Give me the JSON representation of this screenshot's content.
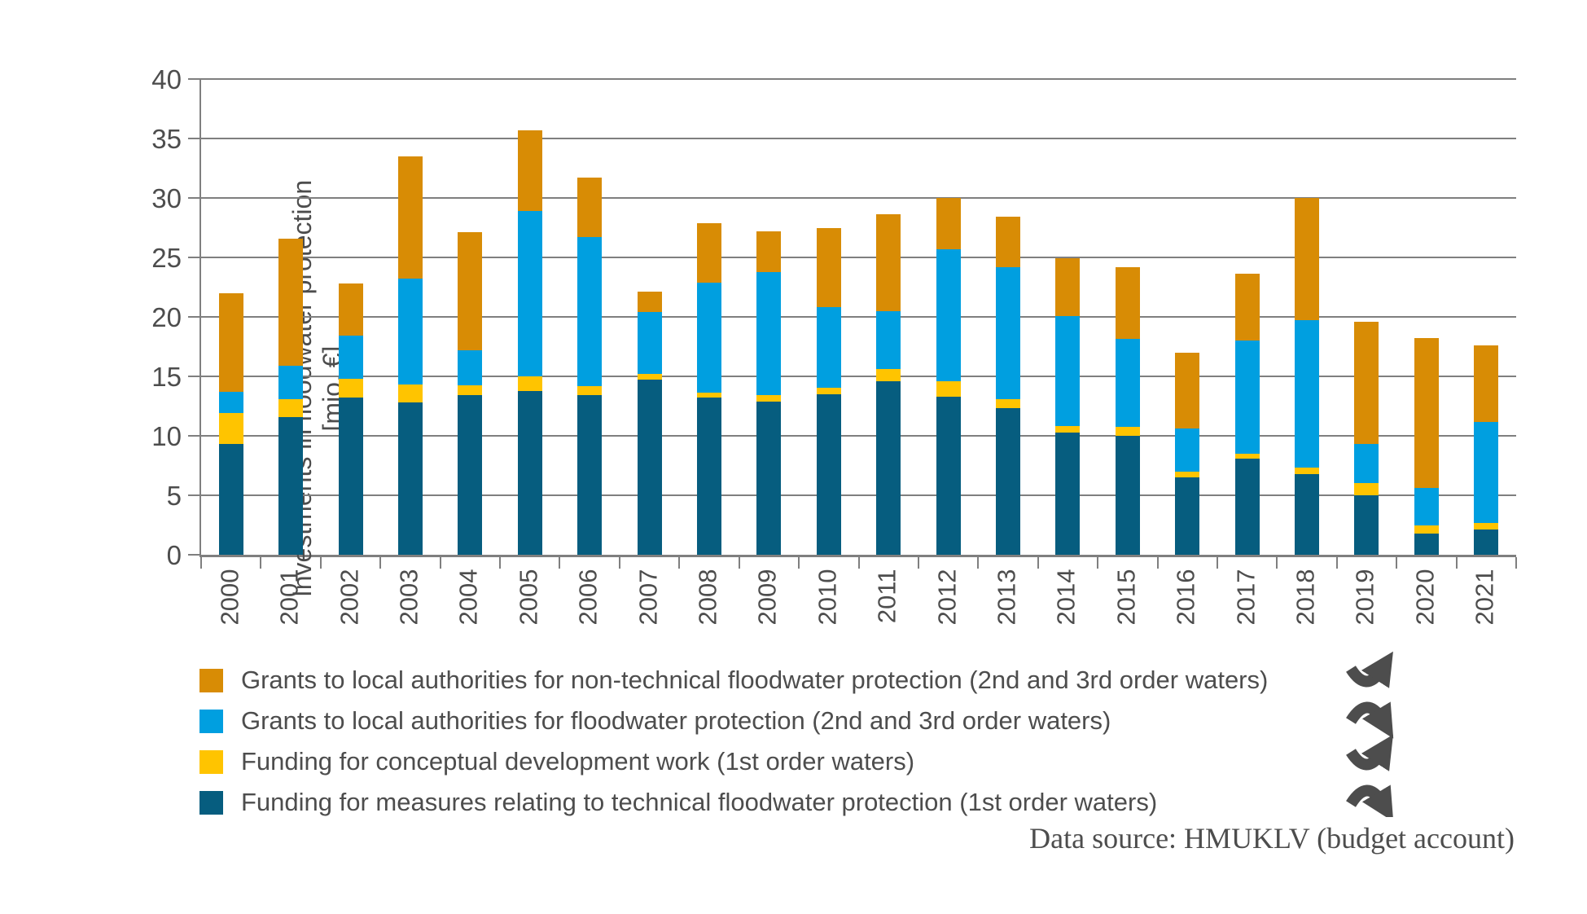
{
  "source_note": "Data source: HMUKLV (budget account)",
  "icon": "meander-arrows-icon",
  "colors": {
    "grid": "#7f7f7f",
    "text": "#4d4d4d",
    "orange": "#d88c05",
    "lightblue": "#009fe0",
    "yellow": "#ffc400",
    "darkblue": "#065d7f"
  },
  "chart_data": {
    "type": "bar",
    "stacked": true,
    "ylabel_line1": "Investments in floodwater protection",
    "ylabel_line2": "[mio. €]",
    "ylim": [
      0,
      40
    ],
    "yticks": [
      0,
      5,
      10,
      15,
      20,
      25,
      30,
      35,
      40
    ],
    "grid": true,
    "legend_position": "bottom-left",
    "categories": [
      "2000",
      "2001",
      "2002",
      "2003",
      "2004",
      "2005",
      "2006",
      "2007",
      "2008",
      "2009",
      "2010",
      "2011",
      "2012",
      "2013",
      "2014",
      "2015",
      "2016",
      "2017",
      "2018",
      "2019",
      "2020",
      "2021"
    ],
    "series": [
      {
        "name": "Funding for measures relating to technical floodwater protection (1st order waters)",
        "color": "#065d7f",
        "values": [
          9.3,
          11.6,
          13.2,
          12.8,
          13.4,
          13.8,
          13.4,
          14.7,
          13.2,
          12.9,
          13.5,
          14.6,
          13.3,
          12.3,
          10.3,
          10.0,
          6.5,
          8.1,
          6.8,
          5.0,
          1.8,
          2.1
        ]
      },
      {
        "name": "Funding for conceptual development work (1st order waters)",
        "color": "#ffc400",
        "values": [
          2.6,
          1.5,
          1.6,
          1.5,
          0.85,
          1.2,
          0.8,
          0.5,
          0.45,
          0.5,
          0.55,
          1.0,
          1.3,
          0.8,
          0.5,
          0.75,
          0.5,
          0.4,
          0.5,
          1.0,
          0.7,
          0.55
        ]
      },
      {
        "name": "Grants to local authorities for floodwater protection (2nd and 3rd order waters)",
        "color": "#009fe0",
        "values": [
          1.8,
          2.8,
          3.6,
          8.9,
          2.95,
          13.9,
          12.5,
          5.2,
          9.25,
          10.35,
          6.8,
          4.9,
          11.1,
          11.1,
          9.3,
          7.4,
          3.6,
          9.5,
          12.4,
          3.3,
          3.1,
          8.55
        ]
      },
      {
        "name": "Grants to local authorities for non-technical floodwater protection (2nd and 3rd order waters)",
        "color": "#d88c05",
        "values": [
          8.3,
          10.7,
          4.4,
          10.3,
          9.9,
          6.8,
          5.0,
          1.7,
          5.0,
          3.45,
          6.65,
          8.1,
          4.3,
          4.2,
          4.8,
          6.05,
          6.4,
          5.6,
          10.3,
          10.3,
          12.6,
          6.4
        ]
      }
    ],
    "legend": [
      {
        "label": "Grants to local authorities for non-technical floodwater protection (2nd and 3rd order waters)",
        "color": "#d88c05"
      },
      {
        "label": "Grants to local authorities for floodwater protection (2nd and 3rd order waters)",
        "color": "#009fe0"
      },
      {
        "label": "Funding for conceptual development work (1st order waters)",
        "color": "#ffc400"
      },
      {
        "label": "Funding for measures relating to technical floodwater protection (1st order waters)",
        "color": "#065d7f"
      }
    ]
  }
}
